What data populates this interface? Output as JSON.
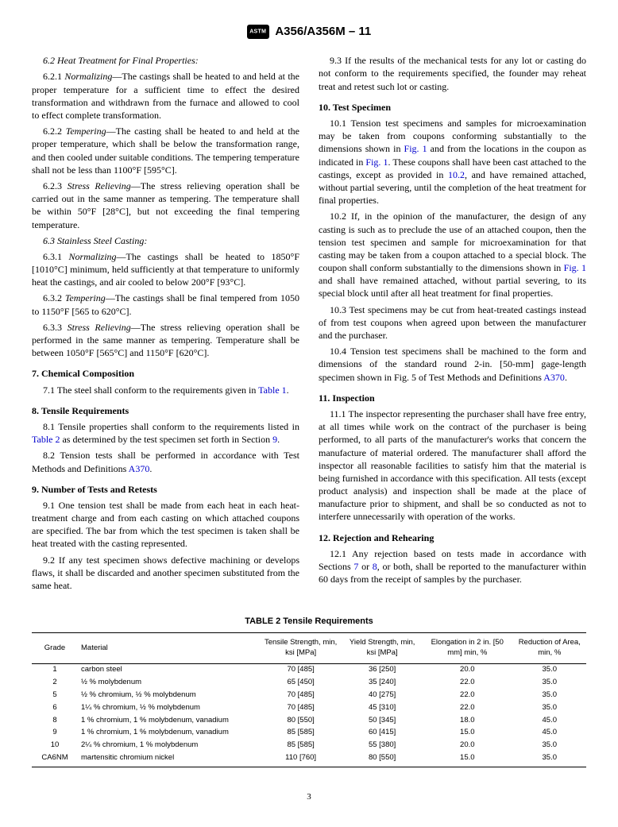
{
  "doc": {
    "designation": "A356/A356M – 11",
    "page": "3"
  },
  "s6_2": {
    "num": "6.2",
    "title": "Heat Treatment for Final Properties:"
  },
  "s6_2_1": {
    "num": "6.2.1",
    "title": "Normalizing",
    "text": "—The castings shall be heated to and held at the proper temperature for a sufficient time to effect the desired transformation and withdrawn from the furnace and allowed to cool to effect complete transformation."
  },
  "s6_2_2": {
    "num": "6.2.2",
    "title": "Tempering",
    "text": "—The casting shall be heated to and held at the proper temperature, which shall be below the transformation range, and then cooled under suitable conditions. The tempering temperature shall not be less than 1100°F [595°C]."
  },
  "s6_2_3": {
    "num": "6.2.3",
    "title": "Stress Relieving",
    "text": "—The stress relieving operation shall be carried out in the same manner as tempering. The temperature shall be within 50°F [28°C], but not exceeding the final tempering temperature."
  },
  "s6_3": {
    "num": "6.3",
    "title": "Stainless Steel Casting:"
  },
  "s6_3_1": {
    "num": "6.3.1",
    "title": "Normalizing",
    "text": "—The castings shall be heated to 1850°F [1010°C] minimum, held sufficiently at that temperature to uniformly heat the castings, and air cooled to below 200°F [93°C]."
  },
  "s6_3_2": {
    "num": "6.3.2",
    "title": "Tempering",
    "text": "—The castings shall be final tempered from 1050 to 1150°F [565 to 620°C]."
  },
  "s6_3_3": {
    "num": "6.3.3",
    "title": "Stress Relieving",
    "text": "—The stress relieving operation shall be performed in the same manner as tempering. Temperature shall be between 1050°F [565°C] and 1150°F [620°C]."
  },
  "s7": {
    "num": "7.",
    "title": "Chemical Composition"
  },
  "s7_1": {
    "lead": "7.1 The steel shall conform to the requirements given in ",
    "link": "Table 1",
    "tail": "."
  },
  "s8": {
    "num": "8.",
    "title": "Tensile Requirements"
  },
  "s8_1": {
    "a": "8.1 Tensile properties shall conform to the requirements listed in ",
    "l1": "Table 2",
    "b": " as determined by the test specimen set forth in Section ",
    "l2": "9",
    "c": "."
  },
  "s8_2": {
    "a": "8.2 Tension tests shall be performed in accordance with Test Methods and Definitions ",
    "l": "A370",
    "b": "."
  },
  "s9": {
    "num": "9.",
    "title": "Number of Tests and Retests"
  },
  "s9_1": "9.1 One tension test shall be made from each heat in each heat-treatment charge and from each casting on which attached coupons are specified. The bar from which the test specimen is taken shall be heat treated with the casting represented.",
  "s9_2": "9.2 If any test specimen shows defective machining or develops flaws, it shall be discarded and another specimen substituted from the same heat.",
  "s9_3": "9.3 If the results of the mechanical tests for any lot or casting do not conform to the requirements specified, the founder may reheat treat and retest such lot or casting.",
  "s10": {
    "num": "10.",
    "title": "Test Specimen"
  },
  "s10_1": {
    "a": "10.1 Tension test specimens and samples for microexamination may be taken from coupons conforming substantially to the dimensions shown in ",
    "l1": "Fig. 1",
    "b": " and from the locations in the coupon as indicated in ",
    "l2": "Fig. 1",
    "c": ". These coupons shall have been cast attached to the castings, except as provided in ",
    "l3": "10.2",
    "d": ", and have remained attached, without partial severing, until the completion of the heat treatment for final properties."
  },
  "s10_2": {
    "a": "10.2 If, in the opinion of the manufacturer, the design of any casting is such as to preclude the use of an attached coupon, then the tension test specimen and sample for microexamination for that casting may be taken from a coupon attached to a special block. The coupon shall conform substantially to the dimensions shown in ",
    "l": "Fig. 1",
    "b": " and shall have remained attached, without partial severing, to its special block until after all heat treatment for final properties."
  },
  "s10_3": "10.3 Test specimens may be cut from heat-treated castings instead of from test coupons when agreed upon between the manufacturer and the purchaser.",
  "s10_4": {
    "a": "10.4 Tension test specimens shall be machined to the form and dimensions of the standard round 2-in. [50-mm] gage-length specimen shown in Fig. 5 of Test Methods and Definitions ",
    "l": "A370",
    "b": "."
  },
  "s11": {
    "num": "11.",
    "title": "Inspection"
  },
  "s11_1": "11.1 The inspector representing the purchaser shall have free entry, at all times while work on the contract of the purchaser is being performed, to all parts of the manufacturer's works that concern the manufacture of material ordered. The manufacturer shall afford the inspector all reasonable facilities to satisfy him that the material is being furnished in accordance with this specification. All tests (except product analysis) and inspection shall be made at the place of manufacture prior to shipment, and shall be so conducted as not to interfere unnecessarily with operation of the works.",
  "s12": {
    "num": "12.",
    "title": "Rejection and Rehearing"
  },
  "s12_1": {
    "a": "12.1 Any rejection based on tests made in accordance with Sections ",
    "l1": "7",
    "b": " or ",
    "l2": "8",
    "c": ", or both, shall be reported to the manufacturer within 60 days from the receipt of samples by the purchaser."
  },
  "table2": {
    "title": "TABLE 2 Tensile Requirements",
    "headers": {
      "grade": "Grade",
      "material": "Material",
      "tensile": "Tensile Strength, min, ksi [MPa]",
      "yield": "Yield Strength, min, ksi [MPa]",
      "elong": "Elongation in 2 in. [50 mm] min, %",
      "red": "Reduction of Area, min, %"
    },
    "rows": [
      {
        "g": "1",
        "m": "carbon steel",
        "t": "70 [485]",
        "y": "36 [250]",
        "e": "20.0",
        "r": "35.0"
      },
      {
        "g": "2",
        "m": "½  % molybdenum",
        "t": "65 [450]",
        "y": "35 [240]",
        "e": "22.0",
        "r": "35.0"
      },
      {
        "g": "5",
        "m": "½  % chromium, ½  % molybdenum",
        "t": "70 [485]",
        "y": "40 [275]",
        "e": "22.0",
        "r": "35.0"
      },
      {
        "g": "6",
        "m": "1¼  % chromium, ½  % molybdenum",
        "t": "70 [485]",
        "y": "45 [310]",
        "e": "22.0",
        "r": "35.0"
      },
      {
        "g": "8",
        "m": "1 % chromium, 1 % molybdenum, vanadium",
        "t": "80 [550]",
        "y": "50 [345]",
        "e": "18.0",
        "r": "45.0"
      },
      {
        "g": "9",
        "m": "1 % chromium, 1 % molybdenum, vanadium",
        "t": "85 [585]",
        "y": "60 [415]",
        "e": "15.0",
        "r": "45.0"
      },
      {
        "g": "10",
        "m": "2¼  % chromium, 1 % molybdenum",
        "t": "85 [585]",
        "y": "55 [380]",
        "e": "20.0",
        "r": "35.0"
      },
      {
        "g": "CA6NM",
        "m": "martensitic chromium nickel",
        "t": "110 [760]",
        "y": "80 [550]",
        "e": "15.0",
        "r": "35.0"
      }
    ]
  }
}
